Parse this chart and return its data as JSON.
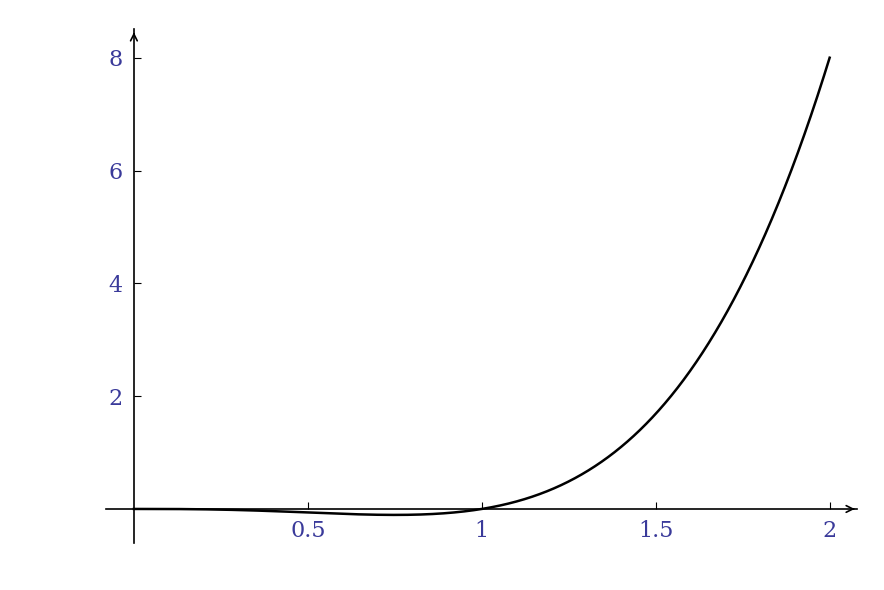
{
  "x_min": 0.0,
  "x_max": 2.0,
  "y_min": -0.3,
  "y_max": 8.5,
  "x_ticks": [
    0.5,
    1.0,
    1.5,
    2.0
  ],
  "y_ticks": [
    2,
    4,
    6,
    8
  ],
  "line_color": "#000000",
  "line_width": 1.8,
  "background_color": "#ffffff",
  "axis_color": "#000000",
  "tick_color": "#3a3a9a",
  "tick_fontsize": 16,
  "spine_linewidth": 1.2
}
